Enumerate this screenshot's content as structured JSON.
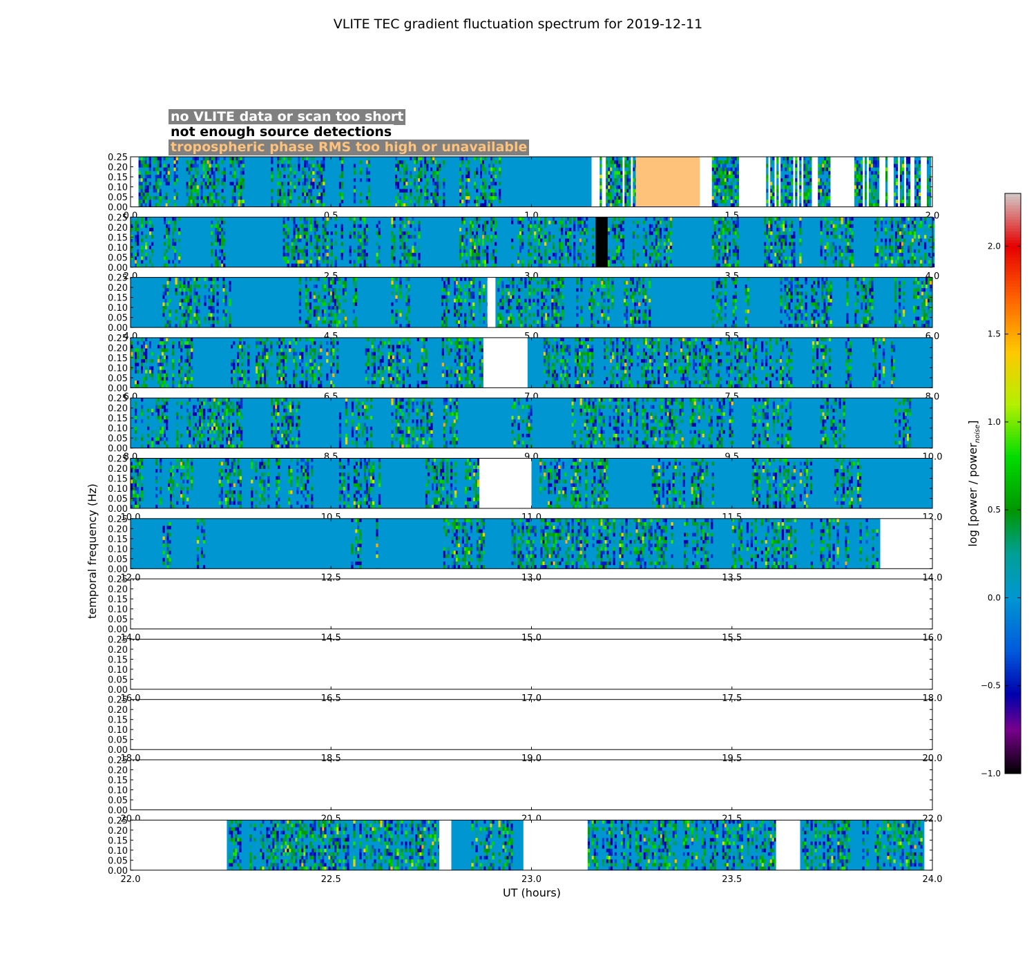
{
  "title": "VLITE TEC gradient fluctuation spectrum for 2019-12-11",
  "legend": {
    "no_data": {
      "label": "no VLITE data or scan too short",
      "color": "#ffffff",
      "background": "#808080"
    },
    "no_sources": {
      "label": "not enough source detections",
      "color": "#000000",
      "background": "#ffffff"
    },
    "tropo": {
      "label": "tropospheric phase RMS too high or unavailable",
      "color": "#ffc27a",
      "background": "#808080"
    }
  },
  "chart_data": {
    "type": "heatmap",
    "xlabel": "UT (hours)",
    "ylabel": "temporal frequency (Hz)",
    "colorbar_label": "log [power / power",
    "colorbar_label_sub": "noise",
    "colorbar_label_end": "]",
    "colorbar_range": [
      -1.0,
      2.3
    ],
    "colorbar_ticks": [
      "2.0",
      "1.5",
      "1.0",
      "0.5",
      "0.0",
      "−0.5",
      "−1.0"
    ],
    "colorbar_tick_values": [
      2.0,
      1.5,
      1.0,
      0.5,
      0.0,
      -0.5,
      -1.0
    ],
    "y_ticks": [
      "0.00",
      "0.05",
      "0.10",
      "0.15",
      "0.20",
      "0.25"
    ],
    "y_tick_values": [
      0,
      0.05,
      0.1,
      0.15,
      0.2,
      0.25
    ],
    "ylim": [
      0,
      0.25
    ],
    "panels": [
      {
        "xlim": [
          0,
          2
        ],
        "x_ticks": [
          "0.0",
          "0.5",
          "1.0",
          "1.5",
          "2.0"
        ],
        "data": [
          [
            0.02,
            1.15
          ]
        ],
        "no_data": [
          [
            1.15,
            1.17
          ]
        ],
        "no_sources": [],
        "tropo": [
          [
            1.26,
            1.42
          ]
        ],
        "noisy": [
          [
            0.02,
            0.28
          ],
          [
            0.35,
            0.48
          ],
          [
            0.52,
            0.62
          ],
          [
            0.66,
            0.78
          ],
          [
            0.82,
            0.92
          ],
          [
            1.17,
            1.26
          ],
          [
            1.45,
            1.52
          ],
          [
            1.58,
            1.75
          ],
          [
            1.8,
            2.0
          ]
        ]
      },
      {
        "xlim": [
          2,
          4
        ],
        "x_ticks": [
          "2.0",
          "2.5",
          "3.0",
          "3.5",
          "4.0"
        ],
        "data": [
          [
            2.0,
            4.0
          ]
        ],
        "no_data": [],
        "no_sources": [
          [
            3.16,
            3.19
          ]
        ],
        "tropo": [],
        "noisy": [
          [
            2.0,
            2.12
          ],
          [
            2.2,
            2.24
          ],
          [
            2.38,
            2.62
          ],
          [
            2.65,
            2.72
          ],
          [
            2.82,
            3.16
          ],
          [
            3.19,
            3.35
          ],
          [
            3.45,
            3.52
          ],
          [
            3.58,
            3.68
          ],
          [
            3.72,
            3.8
          ],
          [
            3.85,
            4.0
          ]
        ]
      },
      {
        "xlim": [
          4,
          6
        ],
        "x_ticks": [
          "4.0",
          "4.5",
          "5.0",
          "5.5",
          "6.0"
        ],
        "data": [
          [
            4.0,
            4.89
          ],
          [
            4.91,
            6.0
          ]
        ],
        "no_data": [
          [
            4.89,
            4.91
          ]
        ],
        "no_sources": [],
        "tropo": [],
        "noisy": [
          [
            4.08,
            4.25
          ],
          [
            4.42,
            4.56
          ],
          [
            4.65,
            4.7
          ],
          [
            4.77,
            4.89
          ],
          [
            4.91,
            5.2
          ],
          [
            5.23,
            5.3
          ],
          [
            5.45,
            5.55
          ],
          [
            5.62,
            5.75
          ],
          [
            5.78,
            5.85
          ],
          [
            5.9,
            6.0
          ]
        ]
      },
      {
        "xlim": [
          6,
          8
        ],
        "x_ticks": [
          "6.0",
          "6.5",
          "7.0",
          "7.5",
          "8.0"
        ],
        "data": [
          [
            6.0,
            6.88
          ],
          [
            6.99,
            8.0
          ]
        ],
        "no_data": [
          [
            6.88,
            6.99
          ]
        ],
        "no_sources": [],
        "tropo": [],
        "noisy": [
          [
            6.0,
            6.15
          ],
          [
            6.25,
            6.3
          ],
          [
            6.25,
            6.52
          ],
          [
            6.58,
            6.88
          ],
          [
            7.03,
            7.15
          ],
          [
            7.18,
            7.65
          ],
          [
            7.7,
            7.8
          ],
          [
            7.85,
            7.92
          ]
        ]
      },
      {
        "xlim": [
          8,
          10
        ],
        "x_ticks": [
          "8.0",
          "8.5",
          "9.0",
          "9.5",
          "10.0"
        ],
        "data": [
          [
            8.0,
            10.0
          ]
        ],
        "no_data": [],
        "no_sources": [],
        "tropo": [],
        "noisy": [
          [
            8.0,
            8.28
          ],
          [
            8.35,
            8.42
          ],
          [
            8.52,
            8.6
          ],
          [
            8.65,
            8.75
          ],
          [
            8.78,
            8.82
          ],
          [
            8.95,
            9.0
          ],
          [
            9.1,
            9.5
          ],
          [
            9.55,
            9.65
          ],
          [
            9.72,
            9.78
          ],
          [
            9.9,
            9.95
          ]
        ]
      },
      {
        "xlim": [
          10,
          12
        ],
        "x_ticks": [
          "10.0",
          "10.5",
          "11.0",
          "11.5",
          "12.0"
        ],
        "data": [
          [
            10.0,
            10.87
          ],
          [
            11.0,
            12.0
          ]
        ],
        "no_data": [
          [
            10.87,
            11.0
          ]
        ],
        "no_sources": [],
        "tropo": [],
        "noisy": [
          [
            10.0,
            10.15
          ],
          [
            10.22,
            10.28
          ],
          [
            10.3,
            10.45
          ],
          [
            10.52,
            10.62
          ],
          [
            10.72,
            10.87
          ],
          [
            11.02,
            11.2
          ],
          [
            11.3,
            11.45
          ],
          [
            11.55,
            11.7
          ],
          [
            11.75,
            11.82
          ]
        ]
      },
      {
        "xlim": [
          12,
          14
        ],
        "x_ticks": [
          "12.0",
          "12.5",
          "13.0",
          "13.5",
          "14.0"
        ],
        "data": [
          [
            12.0,
            13.87
          ]
        ],
        "no_data": [
          [
            13.87,
            14.0
          ]
        ],
        "no_sources": [],
        "tropo": [],
        "noisy": [
          [
            12.08,
            12.1
          ],
          [
            12.16,
            12.2
          ],
          [
            12.55,
            12.62
          ],
          [
            12.78,
            12.88
          ],
          [
            12.95,
            13.35
          ],
          [
            13.38,
            13.45
          ],
          [
            13.5,
            13.7
          ],
          [
            13.72,
            13.86
          ]
        ]
      },
      {
        "xlim": [
          14,
          16
        ],
        "x_ticks": [
          "14.0",
          "14.5",
          "15.0",
          "15.5",
          "16.0"
        ],
        "data": [],
        "no_data": [],
        "no_sources": [],
        "tropo": [],
        "noisy": []
      },
      {
        "xlim": [
          16,
          18
        ],
        "x_ticks": [
          "16.0",
          "16.5",
          "17.0",
          "17.5",
          "18.0"
        ],
        "data": [],
        "no_data": [],
        "no_sources": [],
        "tropo": [],
        "noisy": []
      },
      {
        "xlim": [
          18,
          20
        ],
        "x_ticks": [
          "18.0",
          "18.5",
          "19.0",
          "19.5",
          "20.0"
        ],
        "data": [],
        "no_data": [],
        "no_sources": [],
        "tropo": [],
        "noisy": []
      },
      {
        "xlim": [
          20,
          22
        ],
        "x_ticks": [
          "20.0",
          "20.5",
          "21.0",
          "21.5",
          "22.0"
        ],
        "data": [],
        "no_data": [],
        "no_sources": [],
        "tropo": [],
        "noisy": []
      },
      {
        "xlim": [
          22,
          24
        ],
        "x_ticks": [
          "22.0",
          "22.5",
          "23.0",
          "23.5",
          "24.0"
        ],
        "data": [
          [
            22.24,
            22.77
          ],
          [
            22.8,
            22.98
          ],
          [
            23.14,
            23.61
          ],
          [
            23.67,
            23.98
          ]
        ],
        "no_data": [
          [
            22.0,
            22.24
          ],
          [
            22.77,
            22.8
          ],
          [
            22.98,
            23.14
          ],
          [
            23.61,
            23.67
          ]
        ],
        "no_sources": [],
        "tropo": [],
        "noisy": [
          [
            22.24,
            22.77
          ],
          [
            22.85,
            22.95
          ],
          [
            23.14,
            23.61
          ],
          [
            23.67,
            23.98
          ]
        ]
      }
    ]
  }
}
